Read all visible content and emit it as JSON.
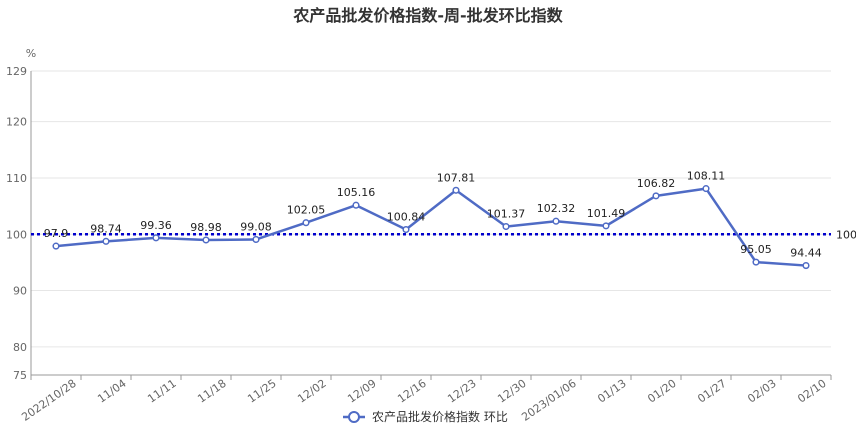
{
  "chart_data": {
    "type": "line",
    "title": "农产品批发价格指数-周-批发环比指数",
    "ylabel": "%",
    "xlabel": "",
    "ylim": [
      75,
      129
    ],
    "yticks": [
      75,
      80,
      90,
      100,
      110,
      120,
      129
    ],
    "grid": true,
    "legend_position": "bottom",
    "categories": [
      "2022/10/28",
      "11/04",
      "11/11",
      "11/18",
      "11/25",
      "12/02",
      "12/09",
      "12/16",
      "12/23",
      "12/30",
      "2023/01/06",
      "01/13",
      "01/20",
      "01/27",
      "02/03",
      "02/10"
    ],
    "series": [
      {
        "name": "农产品批发价格指数 环比",
        "color": "#4f6bc5",
        "values": [
          97.9,
          98.74,
          99.36,
          98.98,
          99.08,
          102.05,
          105.16,
          100.84,
          107.81,
          101.37,
          102.32,
          101.49,
          106.82,
          108.11,
          95.05,
          94.44
        ],
        "labels": [
          "97.9",
          "98.74",
          "99.36",
          "98.98",
          "99.08",
          "102.05",
          "105.16",
          "100.84",
          "107.81",
          "101.37",
          "102.32",
          "101.49",
          "106.82",
          "108.11",
          "95.05",
          "94.44"
        ]
      }
    ],
    "reference_line": {
      "value": 100,
      "label": "100",
      "color": "#0000cc",
      "style": "dotted"
    }
  }
}
